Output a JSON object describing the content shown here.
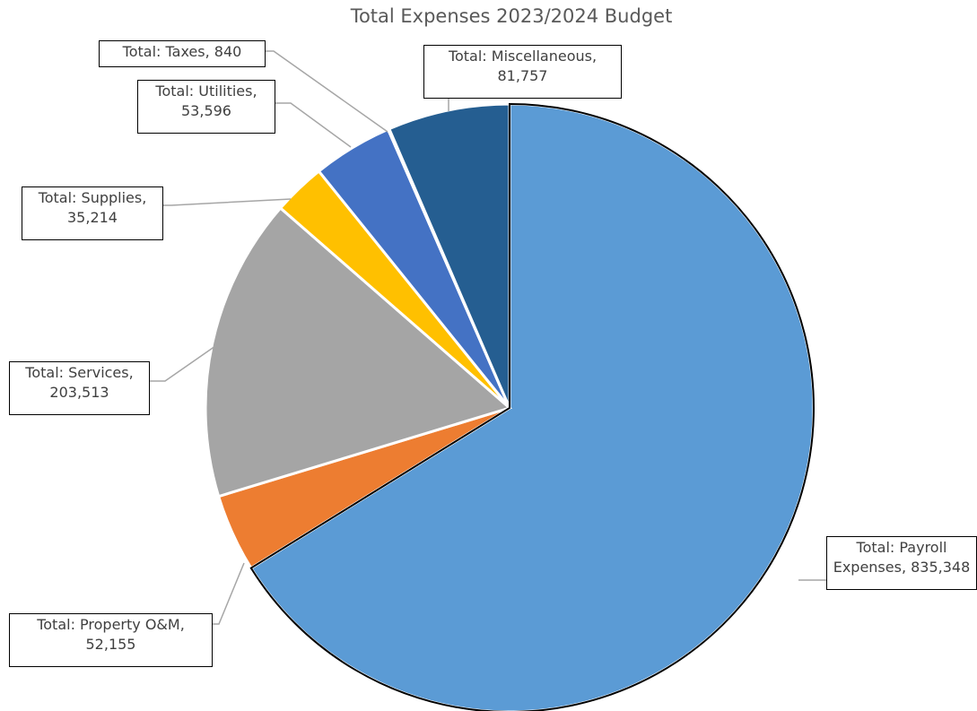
{
  "chart_data": {
    "type": "pie",
    "title": "Total Expenses 2023/2024 Budget",
    "slices": [
      {
        "name": "Total: Payroll Expenses",
        "value": 835348,
        "value_label": "835,348",
        "color": "#5B9BD5",
        "label_line1": "Total: Payroll",
        "label_line2": "Expenses,  835,348"
      },
      {
        "name": "Total: Property O&M",
        "value": 52155,
        "value_label": "52,155",
        "color": "#ED7D31",
        "label_line1": "Total: Property O&M,",
        "label_line2": "52,155"
      },
      {
        "name": "Total: Services",
        "value": 203513,
        "value_label": "203,513",
        "color": "#A5A5A5",
        "label_line1": "Total: Services,",
        "label_line2": "203,513"
      },
      {
        "name": "Total: Supplies",
        "value": 35214,
        "value_label": "35,214",
        "color": "#FFC000",
        "label_line1": "Total: Supplies,",
        "label_line2": "35,214"
      },
      {
        "name": "Total: Utilities",
        "value": 53596,
        "value_label": "53,596",
        "color": "#4472C4",
        "label_line1": "Total: Utilities,",
        "label_line2": "53,596"
      },
      {
        "name": "Total: Taxes",
        "value": 840,
        "value_label": "840",
        "color": "#70AD47",
        "label_line1": "Total: Taxes,  840",
        "label_line2": ""
      },
      {
        "name": "Total: Miscellaneous",
        "value": 81757,
        "value_label": "81,757",
        "color": "#255E91",
        "label_line1": "Total: Miscellaneous,",
        "label_line2": "81,757"
      }
    ],
    "start": "12 o'clock",
    "direction": "clockwise",
    "legend": "none"
  }
}
